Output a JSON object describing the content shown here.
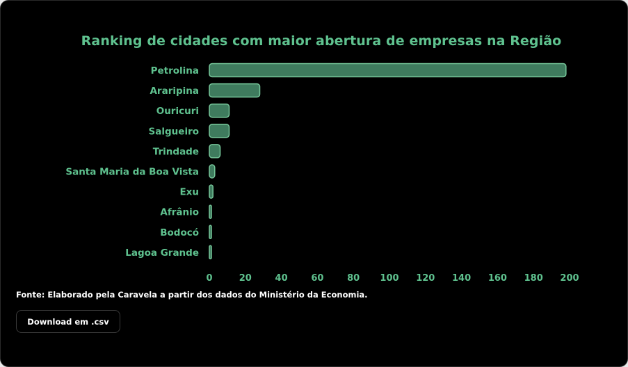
{
  "colors": {
    "background": "#000000",
    "accent": "#5fc28f",
    "bar_fill": "#3f7b5e",
    "bar_stroke": "#76c79a"
  },
  "chart_data": {
    "type": "bar",
    "orientation": "horizontal",
    "title": "Ranking de cidades com maior abertura de empresas na Região",
    "categories": [
      "Petrolina",
      "Araripina",
      "Ouricuri",
      "Salgueiro",
      "Trindade",
      "Santa Maria da Boa Vista",
      "Exu",
      "Afrânio",
      "Bodocó",
      "Lagoa Grande"
    ],
    "values": [
      198,
      28,
      11,
      11,
      6,
      3,
      2,
      1,
      1,
      1
    ],
    "xlim": [
      0,
      200
    ],
    "xticks": [
      "0",
      "20",
      "40",
      "60",
      "80",
      "100",
      "120",
      "140",
      "160",
      "180",
      "200"
    ],
    "grid": false,
    "legend": "none"
  },
  "footer": {
    "source": "Fonte: Elaborado pela Caravela a partir dos dados do Ministério da Economia.",
    "download_label": "Download em .csv"
  }
}
